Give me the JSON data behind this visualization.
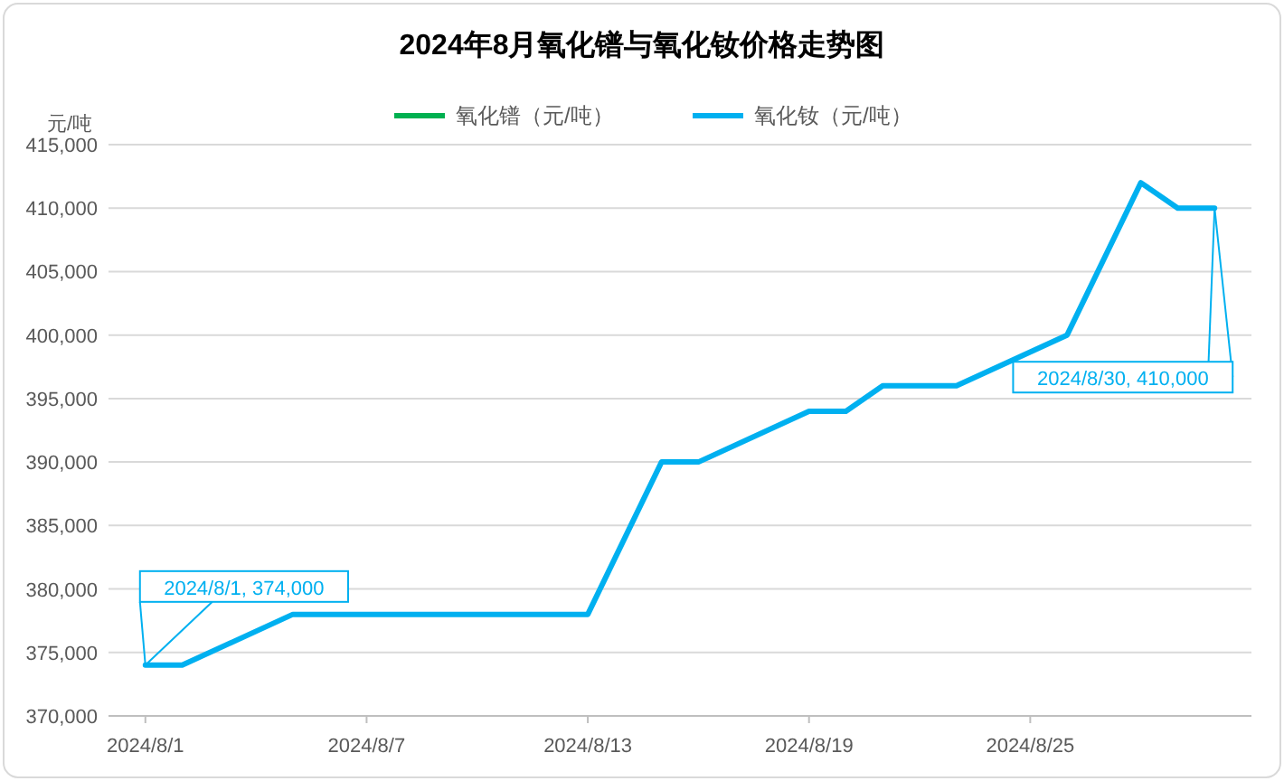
{
  "chart_data": {
    "type": "line",
    "title": "2024年8月氧化镨与氧化钕价格走势图",
    "ylabel": "元/吨",
    "x": [
      "2024-08-01",
      "2024-08-02",
      "2024-08-05",
      "2024-08-06",
      "2024-08-07",
      "2024-08-08",
      "2024-08-09",
      "2024-08-12",
      "2024-08-13",
      "2024-08-14",
      "2024-08-15",
      "2024-08-16",
      "2024-08-19",
      "2024-08-20",
      "2024-08-21",
      "2024-08-22",
      "2024-08-23",
      "2024-08-26",
      "2024-08-27",
      "2024-08-28",
      "2024-08-29",
      "2024-08-30"
    ],
    "series": [
      {
        "name": "氧化镨（元/吨）",
        "color": "#00b050",
        "values": [
          null,
          null,
          null,
          null,
          null,
          null,
          null,
          null,
          null,
          null,
          null,
          null,
          null,
          null,
          null,
          null,
          null,
          null,
          null,
          null,
          null,
          null
        ]
      },
      {
        "name": "氧化钕（元/吨）",
        "color": "#00b0f0",
        "values": [
          374000,
          374000,
          378000,
          378000,
          378000,
          378000,
          378000,
          378000,
          378000,
          384000,
          390000,
          390000,
          394000,
          394000,
          396000,
          396000,
          396000,
          400000,
          406000,
          412000,
          410000,
          410000
        ]
      }
    ],
    "xlim": [
      "2024-07-31",
      "2024-08-31"
    ],
    "xticks": [
      {
        "value": "2024-08-01",
        "label": "2024/8/1"
      },
      {
        "value": "2024-08-07",
        "label": "2024/8/7"
      },
      {
        "value": "2024-08-13",
        "label": "2024/8/13"
      },
      {
        "value": "2024-08-19",
        "label": "2024/8/19"
      },
      {
        "value": "2024-08-25",
        "label": "2024/8/25"
      }
    ],
    "ylim": [
      370000,
      415000
    ],
    "yticks": [
      {
        "value": 370000,
        "label": "370,000"
      },
      {
        "value": 375000,
        "label": "375,000"
      },
      {
        "value": 380000,
        "label": "380,000"
      },
      {
        "value": 385000,
        "label": "385,000"
      },
      {
        "value": 390000,
        "label": "390,000"
      },
      {
        "value": 395000,
        "label": "395,000"
      },
      {
        "value": 400000,
        "label": "400,000"
      },
      {
        "value": 405000,
        "label": "405,000"
      },
      {
        "value": 410000,
        "label": "410,000"
      },
      {
        "value": 415000,
        "label": "415,000"
      }
    ],
    "grid": "y",
    "legend": "top",
    "marker": "none",
    "line_style": "solid",
    "annotations": [
      {
        "text": "2024/8/1, 374,000",
        "x": "2024-08-01",
        "y": 374000
      },
      {
        "text": "2024/8/30, 410,000",
        "x": "2024-08-30",
        "y": 410000
      }
    ]
  }
}
